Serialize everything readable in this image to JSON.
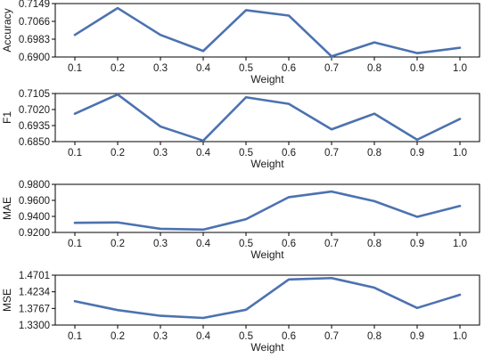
{
  "colors": {
    "line": "#4c72b0",
    "frame": "#000000",
    "text": "#1a1a1a"
  },
  "chart_data": [
    {
      "type": "line",
      "x": [
        0.1,
        0.2,
        0.3,
        0.4,
        0.5,
        0.6,
        0.7,
        0.8,
        0.9,
        1.0
      ],
      "x_tick_labels": [
        "0.1",
        "0.2",
        "0.3",
        "0.4",
        "0.5",
        "0.6",
        "0.7",
        "0.8",
        "0.9",
        "1.0"
      ],
      "xlabel": "Weight",
      "ylabel": "Accuracy",
      "y_ticks": [
        0.69,
        0.6983,
        0.7066,
        0.7149
      ],
      "y_tick_labels": [
        "0.6900",
        "0.6983",
        "0.7066",
        "0.7149"
      ],
      "ylim": [
        0.69,
        0.7149
      ],
      "series": [
        {
          "values": [
            0.7003,
            0.7128,
            0.7003,
            0.6928,
            0.7118,
            0.7093,
            0.6903,
            0.6968,
            0.6918,
            0.6943
          ]
        }
      ]
    },
    {
      "type": "line",
      "x": [
        0.1,
        0.2,
        0.3,
        0.4,
        0.5,
        0.6,
        0.7,
        0.8,
        0.9,
        1.0
      ],
      "x_tick_labels": [
        "0.1",
        "0.2",
        "0.3",
        "0.4",
        "0.5",
        "0.6",
        "0.7",
        "0.8",
        "0.9",
        "1.0"
      ],
      "xlabel": "Weight",
      "ylabel": "F1",
      "y_ticks": [
        0.685,
        0.6935,
        0.702,
        0.7105
      ],
      "y_tick_labels": [
        "0.6850",
        "0.6935",
        "0.7020",
        "0.7105"
      ],
      "ylim": [
        0.685,
        0.7105
      ],
      "series": [
        {
          "values": [
            0.6998,
            0.71,
            0.693,
            0.6855,
            0.7085,
            0.705,
            0.6915,
            0.6998,
            0.686,
            0.697
          ]
        }
      ]
    },
    {
      "type": "line",
      "x": [
        0.1,
        0.2,
        0.3,
        0.4,
        0.5,
        0.6,
        0.7,
        0.8,
        0.9,
        1.0
      ],
      "x_tick_labels": [
        "0.1",
        "0.2",
        "0.3",
        "0.4",
        "0.5",
        "0.6",
        "0.7",
        "0.8",
        "0.9",
        "1.0"
      ],
      "xlabel": "Weight",
      "ylabel": "MAE",
      "y_ticks": [
        0.92,
        0.94,
        0.96,
        0.98
      ],
      "y_tick_labels": [
        "0.9200",
        "0.9400",
        "0.9600",
        "0.9800"
      ],
      "ylim": [
        0.92,
        0.98
      ],
      "series": [
        {
          "values": [
            0.932,
            0.9325,
            0.9245,
            0.9235,
            0.9365,
            0.964,
            0.971,
            0.959,
            0.9395,
            0.953
          ]
        }
      ]
    },
    {
      "type": "line",
      "x": [
        0.1,
        0.2,
        0.3,
        0.4,
        0.5,
        0.6,
        0.7,
        0.8,
        0.9,
        1.0
      ],
      "x_tick_labels": [
        "0.1",
        "0.2",
        "0.3",
        "0.4",
        "0.5",
        "0.6",
        "0.7",
        "0.8",
        "0.9",
        "1.0"
      ],
      "xlabel": "Weight",
      "ylabel": "MSE",
      "y_ticks": [
        1.33,
        1.3767,
        1.4234,
        1.4701
      ],
      "y_tick_labels": [
        "1.3300",
        "1.3767",
        "1.4234",
        "1.4701"
      ],
      "ylim": [
        1.33,
        1.4701
      ],
      "series": [
        {
          "values": [
            1.397,
            1.372,
            1.356,
            1.35,
            1.373,
            1.458,
            1.462,
            1.435,
            1.378,
            1.415
          ]
        }
      ]
    }
  ]
}
